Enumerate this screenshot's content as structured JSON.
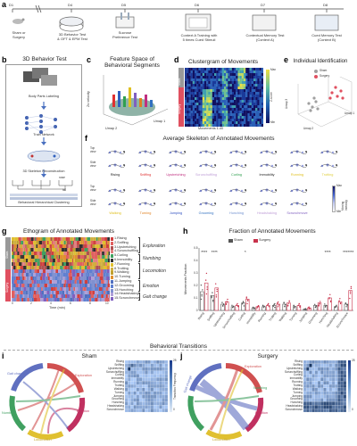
{
  "panel_labels": {
    "a": "a",
    "b": "b",
    "c": "c",
    "d": "d",
    "e": "e",
    "f": "f",
    "g": "g",
    "h": "h",
    "i": "i",
    "j": "j"
  },
  "timeline": {
    "days": [
      "D1",
      "D4",
      "D5",
      "D6",
      "D7",
      "D8"
    ],
    "steps": [
      {
        "label": "Sham or\nSurgery"
      },
      {
        "label": "3D Behavior Test\n& OFT & EPM Test"
      },
      {
        "label": "Sucrose\nPreference Test"
      },
      {
        "label": "Context A Training with\n5 times Cued Stimuli"
      },
      {
        "label": "Contextual Memory Test\n(Context A)"
      },
      {
        "label": "Cued Memory Test\n(Context B)"
      }
    ]
  },
  "panel_b": {
    "title": "3D Behavior Test",
    "steps": [
      "Body Parts Labeling",
      "Train Network",
      "3D Skeleton Reconstruction",
      "Behavioral Hierarchical Clustering"
    ],
    "dendro_labels": [
      "nose",
      "tail"
    ]
  },
  "panel_c": {
    "title": "Feature Space of\nBehavioral Segments",
    "zlabel": "Zs velocity",
    "xlabel": "Umap 2",
    "ylabel": "Umap 1"
  },
  "panel_d": {
    "title": "Clustergram of Movements",
    "xlabel": "Movements 1-40",
    "ylabel_top": "Sham",
    "ylabel_bottom": "Surgery",
    "cbar_max": "Max",
    "cbar_min": "Min",
    "cbar_label": "Z-score"
  },
  "panel_e": {
    "title": "Individual Identification",
    "legend": [
      "Sham",
      "Surgery"
    ],
    "legend_colors": [
      "#a0a0a0",
      "#e05060"
    ],
    "axes": [
      "Umap 3",
      "Umap 2",
      "Umap 1"
    ],
    "ticks": [
      "10",
      "0",
      "-10"
    ]
  },
  "panel_f": {
    "title": "Average Skeleton of Annotated Movements",
    "row_labels": [
      "Top\nview",
      "Side\nview",
      "Top\nview",
      "Side\nview"
    ],
    "row1": [
      {
        "name": "Rising",
        "color": "#222222"
      },
      {
        "name": "Sniffing",
        "color": "#e03030"
      },
      {
        "name": "Upstretching",
        "color": "#c03080"
      },
      {
        "name": "Scrunchuffling",
        "color": "#c0a0d8"
      },
      {
        "name": "Curling",
        "color": "#30a050"
      },
      {
        "name": "Immobility",
        "color": "#202020"
      },
      {
        "name": "Running",
        "color": "#e0c020"
      },
      {
        "name": "Trotting",
        "color": "#e0d040"
      }
    ],
    "row2": [
      {
        "name": "Walking",
        "color": "#e0c020"
      },
      {
        "name": "Turning",
        "color": "#e08020"
      },
      {
        "name": "Jumping",
        "color": "#3050c0"
      },
      {
        "name": "Grooming",
        "color": "#3070c0"
      },
      {
        "name": "Hunching",
        "color": "#7090d0"
      },
      {
        "name": "Headshaking",
        "color": "#c0a0d8"
      },
      {
        "name": "Scrunchmove",
        "color": "#8060c0"
      }
    ],
    "cbar": {
      "max": "Max",
      "min": "Min",
      "label": "Moving Intensity"
    }
  },
  "panel_g": {
    "title": "Ethogram of Annotated Movements",
    "xlabel": "Time (min)",
    "xticks": [
      "0",
      "2",
      "4",
      "6",
      "8",
      "10"
    ],
    "ylabels": [
      "Sham",
      "Surgery"
    ],
    "legend": [
      {
        "n": "1.Rising",
        "c": "#d04040"
      },
      {
        "n": "2.Sniffing",
        "c": "#e06060"
      },
      {
        "n": "3.Upstretching",
        "c": "#b05050"
      },
      {
        "n": "4.Scrunchuffling",
        "c": "#e08080"
      },
      {
        "n": "5.Curling",
        "c": "#40a060"
      },
      {
        "n": "6.Immobility",
        "c": "#303030"
      },
      {
        "n": "7.Running",
        "c": "#e0c030"
      },
      {
        "n": "8.Trotting",
        "c": "#d0b040"
      },
      {
        "n": "9.Walking",
        "c": "#c0a030"
      },
      {
        "n": "10.Turning",
        "c": "#e09030"
      },
      {
        "n": "11.Jumping",
        "c": "#5070c0"
      },
      {
        "n": "12.Grooming",
        "c": "#6080d0"
      },
      {
        "n": "13.Hunching",
        "c": "#8090d0"
      },
      {
        "n": "14.Headshaking",
        "c": "#b0a0d8"
      },
      {
        "n": "15.Scrunchmove",
        "c": "#8060c0"
      }
    ],
    "groups": [
      {
        "name": "Exploration",
        "from": 0,
        "to": 3
      },
      {
        "name": "Numbing",
        "from": 4,
        "to": 5
      },
      {
        "name": "Locomotion",
        "from": 6,
        "to": 9
      },
      {
        "name": "Emotion",
        "from": 10,
        "to": 12
      },
      {
        "name": "Gait change",
        "from": 13,
        "to": 14
      }
    ]
  },
  "panel_h": {
    "title": "Fraction of Annotated Movements",
    "legend": [
      "Sham",
      "Surgery"
    ],
    "legend_colors": [
      "#555555",
      "#c8324b"
    ],
    "ylabel": "Movements Fraction",
    "yticks": [
      "0.5",
      "0.4",
      "0.3",
      "0.2",
      "0.1",
      "0"
    ],
    "stars": [
      "****",
      "****",
      "*",
      "****",
      "*******"
    ],
    "categories": [
      "Rising",
      "Sniffing",
      "Upstretching",
      "Scrunchuffling",
      "Curling",
      "Immobility",
      "Running",
      "Trotting",
      "Walking",
      "Turning",
      "Jumping",
      "Grooming",
      "Hunching",
      "Headshaking",
      "Scrunchmove"
    ],
    "sham": [
      0.15,
      0.12,
      0.05,
      0.03,
      0.06,
      0.02,
      0.03,
      0.04,
      0.05,
      0.03,
      0.01,
      0.04,
      0.04,
      0.03,
      0.05
    ],
    "surgery": [
      0.22,
      0.18,
      0.07,
      0.04,
      0.09,
      0.03,
      0.04,
      0.05,
      0.06,
      0.04,
      0.02,
      0.06,
      0.1,
      0.07,
      0.16
    ]
  },
  "transitions_title": "Behavioral Transitions",
  "panel_i": {
    "title": "Sham",
    "chord_labels": [
      "Gait change",
      "Exploration",
      "Emotion",
      "Locomotion",
      "Numbing"
    ],
    "matrix_rows": [
      "Rising",
      "Sniffing",
      "Upstretching",
      "Scrunchuffling",
      "Curling",
      "Immobility",
      "Running",
      "Trotting",
      "Walking",
      "Turning",
      "Jumping",
      "Grooming",
      "Hunching",
      "Headshaking",
      "Scrunchmove"
    ],
    "cbar_label": "Transition Frequency",
    "cbar_ticks": [
      "25",
      "0"
    ]
  },
  "panel_j": {
    "title": "Surgery",
    "chord_labels": [
      "Gait change",
      "Exploration",
      "Emotion",
      "Locomotion",
      "Numbing"
    ],
    "matrix_rows": [
      "Rising",
      "Sniffing",
      "Upstretching",
      "Scrunchuffling",
      "Curling",
      "Immobility",
      "Running",
      "Trotting",
      "Walking",
      "Turning",
      "Jumping",
      "Grooming",
      "Hunching",
      "Headshaking",
      "Scrunchmove"
    ],
    "cbar_label": "Transition Frequency",
    "cbar_ticks": [
      "25",
      "0"
    ]
  },
  "chart_data": [
    {
      "type": "bar",
      "title": "Fraction of Annotated Movements",
      "ylabel": "Movements Fraction",
      "ylim": [
        0,
        0.5
      ],
      "categories": [
        "Rising",
        "Sniffing",
        "Upstretching",
        "Scrunchuffling",
        "Curling",
        "Immobility",
        "Running",
        "Trotting",
        "Walking",
        "Turning",
        "Jumping",
        "Grooming",
        "Hunching",
        "Headshaking",
        "Scrunchmove"
      ],
      "series": [
        {
          "name": "Sham",
          "values": [
            0.15,
            0.12,
            0.05,
            0.03,
            0.06,
            0.02,
            0.03,
            0.04,
            0.05,
            0.03,
            0.01,
            0.04,
            0.04,
            0.03,
            0.05
          ]
        },
        {
          "name": "Surgery",
          "values": [
            0.22,
            0.18,
            0.07,
            0.04,
            0.09,
            0.03,
            0.04,
            0.05,
            0.06,
            0.04,
            0.02,
            0.06,
            0.1,
            0.07,
            0.16
          ]
        }
      ]
    }
  ]
}
